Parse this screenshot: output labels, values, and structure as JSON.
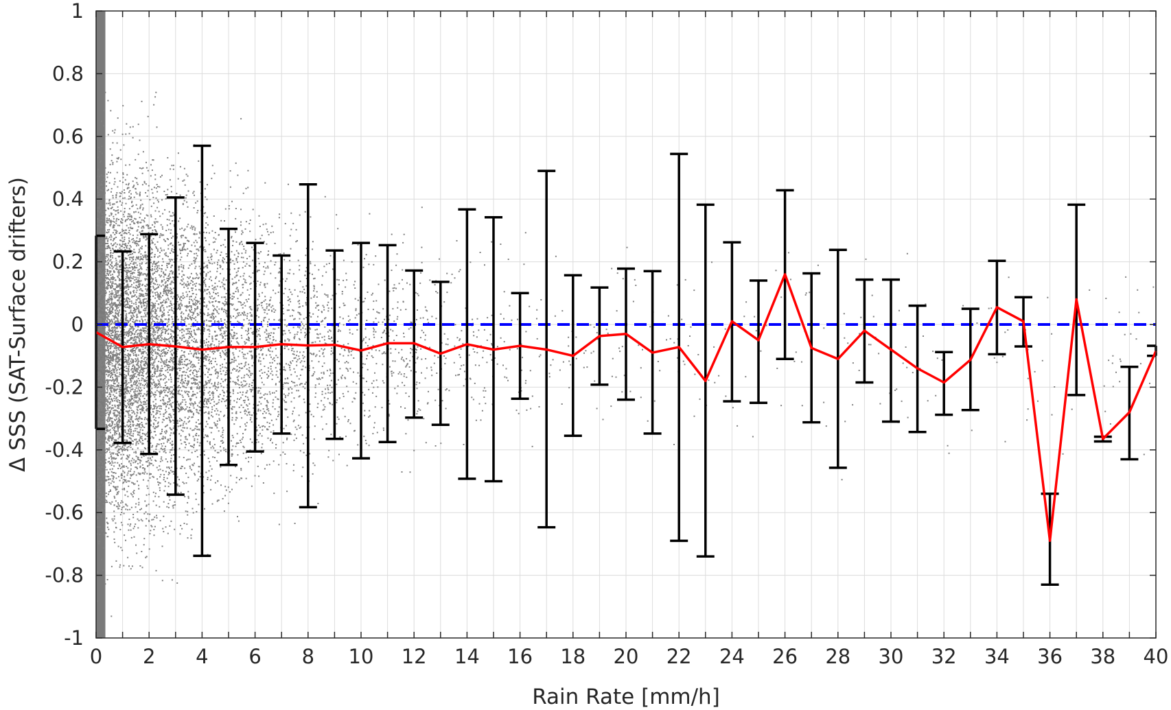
{
  "chart_data": {
    "type": "scatter",
    "title": "",
    "xlabel": "Rain Rate [mm/h]",
    "ylabel": "Δ SSS (SAT-Surface drifters)",
    "xlim": [
      0,
      40
    ],
    "ylim": [
      -1,
      1
    ],
    "x_ticks": [
      "0",
      "2",
      "4",
      "6",
      "8",
      "10",
      "12",
      "14",
      "16",
      "18",
      "20",
      "22",
      "24",
      "26",
      "28",
      "30",
      "32",
      "34",
      "36",
      "38",
      "40"
    ],
    "y_ticks": [
      "1",
      "0.8",
      "0.6",
      "0.4",
      "0.2",
      "0",
      "-0.2",
      "-0.4",
      "-0.6",
      "-0.8",
      "-1"
    ],
    "grid": true,
    "legend": "none",
    "scatter_points": {
      "description_color": "#808080",
      "note": "dense cloud of individual matchups, heaviest near 0 mm/h"
    },
    "reference_line": {
      "y": 0,
      "style": "dashed",
      "color": "#0000ff"
    },
    "series": [
      {
        "color": "#ff0000",
        "x": [
          0,
          1,
          2,
          3,
          4,
          5,
          6,
          7,
          8,
          9,
          10,
          11,
          12,
          13,
          14,
          15,
          16,
          17,
          18,
          19,
          20,
          21,
          22,
          23,
          24,
          25,
          26,
          27,
          28,
          29,
          30,
          31,
          32,
          33,
          34,
          35,
          36,
          37,
          38,
          39,
          40
        ],
        "mean": [
          -0.025,
          -0.072,
          -0.063,
          -0.07,
          -0.08,
          -0.072,
          -0.072,
          -0.063,
          -0.067,
          -0.065,
          -0.083,
          -0.06,
          -0.06,
          -0.093,
          -0.063,
          -0.08,
          -0.068,
          -0.08,
          -0.1,
          -0.037,
          -0.03,
          -0.09,
          -0.072,
          -0.18,
          0.01,
          -0.05,
          0.16,
          -0.075,
          -0.11,
          -0.02,
          -0.08,
          -0.14,
          -0.185,
          -0.113,
          0.055,
          0.01,
          -0.69,
          0.08,
          -0.365,
          -0.28,
          -0.085
        ],
        "err_upper": [
          0.283,
          0.233,
          0.288,
          0.405,
          0.57,
          0.305,
          0.26,
          0.22,
          0.447,
          0.236,
          0.26,
          0.253,
          0.172,
          0.136,
          0.367,
          0.342,
          0.1,
          0.49,
          0.157,
          0.118,
          0.178,
          0.17,
          0.544,
          0.382,
          0.262,
          0.14,
          0.428,
          0.163,
          0.238,
          0.143,
          0.143,
          0.06,
          -0.088,
          0.05,
          0.203,
          0.087,
          -0.54,
          0.382,
          -0.358,
          -0.135,
          -0.068
        ],
        "err_lower": [
          -0.333,
          -0.378,
          -0.413,
          -0.543,
          -0.738,
          -0.448,
          -0.405,
          -0.348,
          -0.583,
          -0.365,
          -0.427,
          -0.375,
          -0.297,
          -0.32,
          -0.492,
          -0.5,
          -0.237,
          -0.647,
          -0.355,
          -0.192,
          -0.24,
          -0.348,
          -0.69,
          -0.74,
          -0.245,
          -0.25,
          -0.11,
          -0.312,
          -0.457,
          -0.185,
          -0.31,
          -0.343,
          -0.288,
          -0.273,
          -0.095,
          -0.07,
          -0.83,
          -0.225,
          -0.373,
          -0.43,
          -0.1
        ]
      }
    ]
  }
}
